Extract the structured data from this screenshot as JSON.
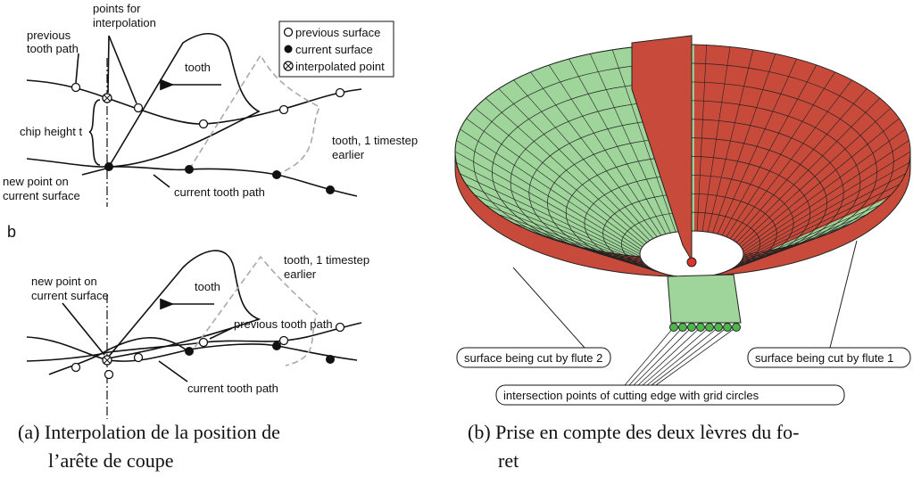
{
  "figure_a": {
    "top": {
      "points_for_interpolation": [
        "points for",
        "interpolation"
      ],
      "previous_tooth_path": [
        "previous",
        "tooth path"
      ],
      "legend": [
        "previous surface",
        "current surface",
        "interpolated point"
      ],
      "tooth": "tooth",
      "chip_height": "chip height t",
      "tooth_earlier": [
        "tooth, 1 timestep",
        "earlier"
      ],
      "new_point": [
        "new point on",
        "current surface"
      ],
      "current_tooth_path": "current tooth path"
    },
    "label_b": "b",
    "bottom": {
      "new_point": [
        "new point on",
        "current surface"
      ],
      "tooth": "tooth",
      "tooth_earlier": [
        "tooth, 1 timestep",
        "earlier"
      ],
      "previous_tooth_path": "previous tooth path",
      "current_tooth_path": "current tooth path"
    }
  },
  "figure_b": {
    "flute_2": "surface being cut by flute 2",
    "flute_1": "surface being cut by flute 1",
    "intersection": "intersection points of cutting edge with grid circles"
  },
  "captions": {
    "a": [
      "(a) Interpolation de la position de",
      "l’arête de coupe"
    ],
    "b": [
      "(b) Prise en compte des deux lèvres du fo-",
      "ret"
    ]
  }
}
